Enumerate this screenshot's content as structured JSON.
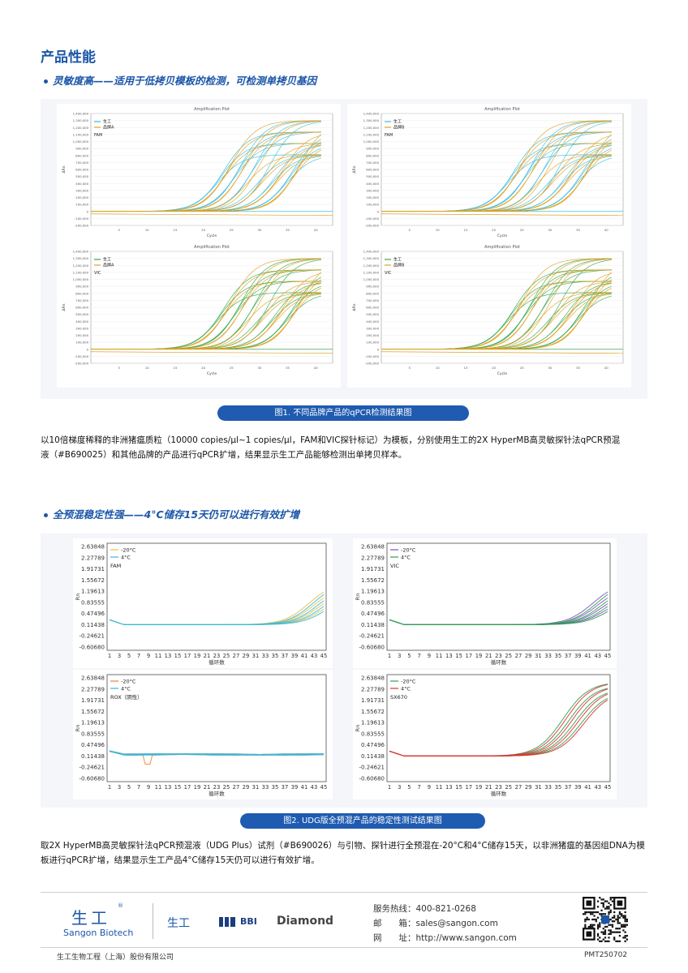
{
  "heading": "产品性能",
  "section1": {
    "title": "灵敏度高——适用于低拷贝模板的检测，可检测单拷贝基因",
    "caption": "图1. 不同品牌产品的qPCR检测结果图",
    "text_line1": "以10倍梯度稀释的非洲猪瘟质粒（10000 copies/μl~1 copies/μl，FAM和VIC探针标记）为模板，分别使用生工的2X HyperMB高灵敏探针法qPCR预混",
    "text_line2": "液（#B690025）和其他品牌的产品进行qPCR扩增，结果显示生工产品能够检测出单拷贝样本。"
  },
  "section2": {
    "title": "全预混稳定性强——4°C储存15天仍可以进行有效扩增",
    "caption": "图2. UDG版全预混产品的稳定性测试结果图",
    "text_line1": "取2X HyperMB高灵敏探针法qPCR预混液（UDG Plus）试剂（#B690026）与引物、探针进行全预混在-20°C和4°C储存15天，以非洲猪瘟的基因组DNA为模",
    "text_line2": "板进行qPCR扩增，结果显示生工产品4°C储存15天仍可以进行有效扩增。"
  },
  "amp_plots": [
    {
      "title": "Amplification Plot",
      "legend": [
        "生工",
        "品牌A"
      ],
      "dye": "FAM",
      "xlabel": "Cycle",
      "ylabel": "ΔRn",
      "yticks": [
        "1,400,000",
        "1,300,000",
        "1,200,000",
        "1,100,000",
        "1,000,000",
        "900,000",
        "800,000",
        "700,000",
        "600,000",
        "500,000",
        "400,000",
        "300,000",
        "200,000",
        "100,000",
        "0",
        "-100,000",
        "-200,000"
      ],
      "xticks": [
        "5",
        "10",
        "15",
        "20",
        "25",
        "30",
        "35",
        "40"
      ],
      "colors": [
        "#3bbfe0",
        "#e0a020"
      ]
    },
    {
      "title": "Amplification Plot",
      "legend": [
        "生工",
        "品牌B"
      ],
      "dye": "FAM",
      "xlabel": "Cycle",
      "ylabel": "ΔRn",
      "yticks": [
        "1,400,000",
        "1,300,000",
        "1,200,000",
        "1,100,000",
        "1,000,000",
        "900,000",
        "800,000",
        "700,000",
        "600,000",
        "500,000",
        "400,000",
        "300,000",
        "200,000",
        "100,000",
        "0",
        "-100,000",
        "-200,000"
      ],
      "xticks": [
        "5",
        "10",
        "15",
        "20",
        "25",
        "30",
        "35",
        "40"
      ],
      "colors": [
        "#3bbfe0",
        "#e0a020"
      ]
    },
    {
      "title": "Amplification Plot",
      "legend": [
        "生工",
        "品牌A"
      ],
      "dye": "VIC",
      "xlabel": "Cycle",
      "ylabel": "ΔRn",
      "yticks": [
        "1,400,000",
        "1,300,000",
        "1,200,000",
        "1,100,000",
        "1,000,000",
        "900,000",
        "800,000",
        "700,000",
        "600,000",
        "500,000",
        "400,000",
        "300,000",
        "200,000",
        "100,000",
        "0",
        "-100,000",
        "-200,000"
      ],
      "xticks": [
        "5",
        "10",
        "15",
        "20",
        "25",
        "30",
        "35",
        "40"
      ],
      "colors": [
        "#38a850",
        "#e0a020"
      ]
    },
    {
      "title": "Amplification Plot",
      "legend": [
        "生工",
        "品牌B"
      ],
      "dye": "VIC",
      "xlabel": "Cycle",
      "ylabel": "ΔRn",
      "yticks": [
        "1,400,000",
        "1,300,000",
        "1,200,000",
        "1,100,000",
        "1,000,000",
        "900,000",
        "800,000",
        "700,000",
        "600,000",
        "500,000",
        "400,000",
        "300,000",
        "200,000",
        "100,000",
        "0",
        "-100,000",
        "-200,000"
      ],
      "xticks": [
        "5",
        "10",
        "15",
        "20",
        "25",
        "30",
        "35",
        "40"
      ],
      "colors": [
        "#38a850",
        "#e0a020"
      ]
    }
  ],
  "stab_plots": [
    {
      "legend": [
        "-20°C",
        "4°C"
      ],
      "dye": "FAM",
      "xlabel": "循环数",
      "ylabel": "Rn",
      "colors": [
        "#e8c040",
        "#3ab8e0"
      ],
      "rising": true
    },
    {
      "legend": [
        "-20°C",
        "4°C"
      ],
      "dye": "VIC",
      "xlabel": "循环数",
      "ylabel": "Rn",
      "colors": [
        "#8050c0",
        "#2ea050"
      ],
      "rising": true
    },
    {
      "legend": [
        "-20°C",
        "4°C"
      ],
      "dye": "ROX（阴性）",
      "xlabel": "循环数",
      "ylabel": "Rn",
      "colors": [
        "#f08030",
        "#3ab8e0"
      ],
      "rising": false
    },
    {
      "legend": [
        "-20°C",
        "4°C"
      ],
      "dye": "SX670",
      "xlabel": "循环数",
      "ylabel": "Rn",
      "colors": [
        "#30a050",
        "#e03030"
      ],
      "rising": true
    }
  ],
  "stab_yticks": [
    "2.63848",
    "2.27789",
    "1.91731",
    "1.55672",
    "1.19613",
    "0.83555",
    "0.47496",
    "0.11438",
    "-0.24621",
    "-0.60680"
  ],
  "stab_xticks": [
    "1",
    "3",
    "5",
    "7",
    "9",
    "11",
    "13",
    "15",
    "17",
    "19",
    "21",
    "23",
    "25",
    "27",
    "29",
    "31",
    "33",
    "35",
    "37",
    "39",
    "41",
    "43",
    "45"
  ],
  "footer": {
    "brand_cn": "生工",
    "brand_en": "Sangon Biotech",
    "logo2": "生工",
    "logo3": "BBI",
    "logo4": "Diamond",
    "hotline_label": "服务热线：",
    "hotline": "400-821-0268",
    "email_label": "邮　　箱：",
    "email": "sales@sangon.com",
    "url_label": "网　　址：",
    "url": "http://www.sangon.com",
    "company": "生工生物工程（上海）股份有限公司",
    "code": "PMT250702"
  }
}
